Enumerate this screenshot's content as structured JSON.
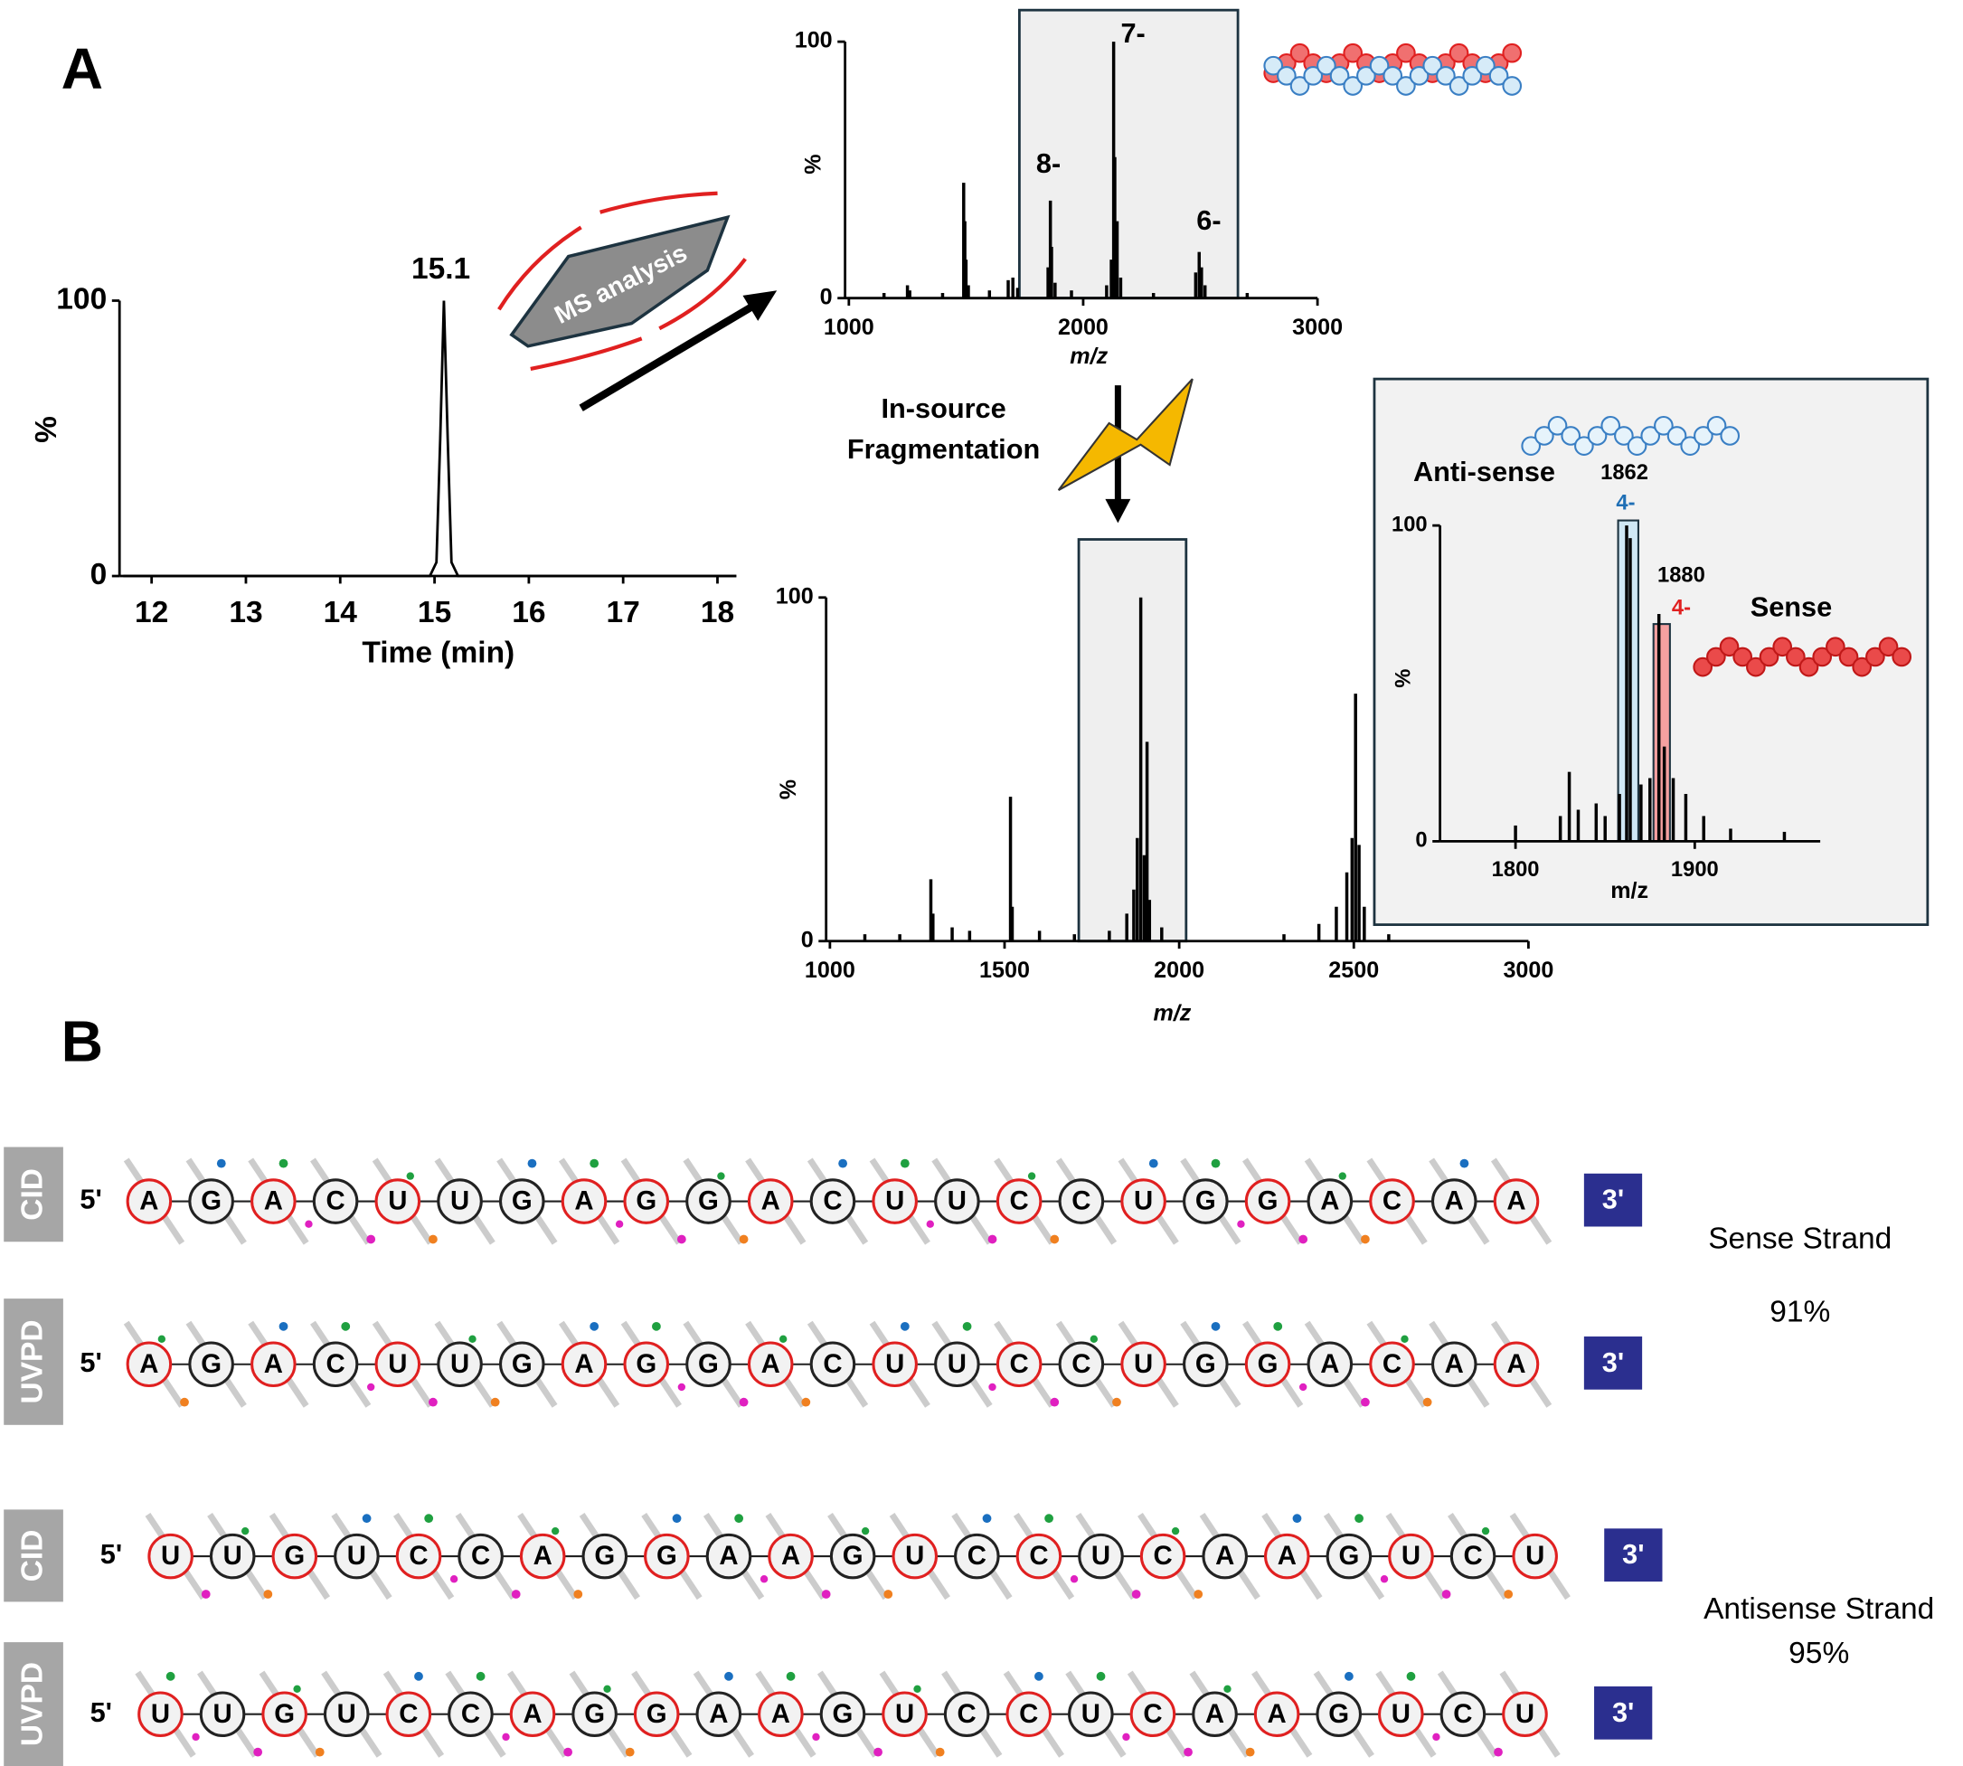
{
  "panel_labels": [
    "A",
    "B"
  ],
  "workflow": {
    "ms_analysis": "MS analysis",
    "fragmentation": [
      "In-source",
      "Fragmentation"
    ]
  },
  "chart_data": [
    {
      "type": "line",
      "color": "#000000",
      "x": [
        11.7,
        14.95,
        15.02,
        15.06,
        15.1,
        15.14,
        15.18,
        15.25,
        18.2
      ],
      "values": [
        0,
        0,
        5,
        50,
        100,
        50,
        5,
        0,
        0
      ],
      "xlim": [
        11.7,
        18.2
      ],
      "ylim": [
        0,
        100
      ],
      "xticks": [
        12,
        13,
        14,
        15,
        16,
        17,
        18
      ],
      "yticks": [
        0,
        100
      ],
      "x_label": "Time (min)",
      "y_label": "%",
      "annotations": [
        "15.1"
      ]
    },
    {
      "type": "spectrum",
      "color": "#000000",
      "x": [
        1150,
        1250,
        1260,
        1400,
        1490,
        1495,
        1500,
        1510,
        1600,
        1680,
        1700,
        1720,
        1850,
        1860,
        1865,
        1880,
        1950,
        2100,
        2120,
        2130,
        2135,
        2145,
        2160,
        2300,
        2480,
        2495,
        2505,
        2520,
        2700
      ],
      "values": [
        2,
        5,
        3,
        2,
        45,
        30,
        15,
        5,
        3,
        7,
        8,
        4,
        12,
        38,
        20,
        6,
        3,
        5,
        15,
        100,
        55,
        30,
        8,
        2,
        10,
        18,
        12,
        5,
        2
      ],
      "xlim": [
        1000,
        3000
      ],
      "ylim": [
        0,
        100
      ],
      "xticks": [
        1000,
        2000,
        3000
      ],
      "yticks": [
        0,
        100
      ],
      "x_label": "m/z",
      "y_label": "%",
      "annotations": [
        "8-",
        "7-",
        "6-"
      ]
    },
    {
      "type": "spectrum",
      "color": "#000000",
      "x": [
        1100,
        1200,
        1289,
        1295,
        1350,
        1400,
        1517,
        1522,
        1600,
        1700,
        1800,
        1850,
        1870,
        1880,
        1890,
        1900,
        1908,
        1915,
        1950,
        2300,
        2400,
        2450,
        2480,
        2495,
        2505,
        2515,
        2530,
        2600
      ],
      "values": [
        2,
        2,
        18,
        8,
        4,
        3,
        42,
        10,
        3,
        2,
        3,
        8,
        15,
        30,
        100,
        25,
        58,
        12,
        4,
        2,
        5,
        10,
        20,
        30,
        72,
        28,
        10,
        2
      ],
      "xlim": [
        1000,
        3000
      ],
      "ylim": [
        0,
        100
      ],
      "xticks": [
        1000,
        1500,
        2000,
        2500,
        3000
      ],
      "yticks": [
        0,
        100
      ],
      "x_label": "m/z",
      "y_label": "%"
    },
    {
      "type": "spectrum",
      "color": "#000000",
      "x": [
        1800,
        1825,
        1830,
        1835,
        1845,
        1850,
        1858,
        1862,
        1864,
        1870,
        1875,
        1880,
        1883,
        1888,
        1895,
        1905,
        1920,
        1950
      ],
      "values": [
        5,
        8,
        22,
        10,
        12,
        8,
        15,
        100,
        96,
        18,
        20,
        72,
        30,
        20,
        15,
        8,
        4,
        3
      ],
      "xlim": [
        1760,
        1970
      ],
      "ylim": [
        0,
        100
      ],
      "xticks": [
        1800,
        1900
      ],
      "yticks": [
        0,
        100
      ],
      "x_label": "m/z",
      "y_label": "%",
      "annotations": [
        "Anti-sense",
        "1862",
        "4-",
        "1880",
        "4-",
        "Sense"
      ]
    }
  ],
  "panel_B": {
    "five_prime": "5'",
    "three_prime": "3'",
    "strands": [
      {
        "name": "Sense Strand",
        "coverage": "91%",
        "sequence": [
          "A",
          "G",
          "A",
          "C",
          "U",
          "U",
          "G",
          "A",
          "G",
          "G",
          "A",
          "C",
          "U",
          "U",
          "C",
          "C",
          "U",
          "G",
          "G",
          "A",
          "C",
          "A",
          "A"
        ],
        "outline_colors": [
          "#e02020",
          "#222222",
          "#e02020",
          "#222222",
          "#e02020",
          "#222222",
          "#222222",
          "#e02020",
          "#e02020",
          "#222222",
          "#e02020",
          "#222222",
          "#e02020",
          "#222222",
          "#e02020",
          "#222222",
          "#e02020",
          "#222222",
          "#e02020",
          "#222222",
          "#e02020",
          "#222222",
          "#e02020"
        ],
        "methods": [
          "CID",
          "UVPD"
        ]
      },
      {
        "name": "Antisense Strand",
        "coverage": "95%",
        "sequence": [
          "U",
          "U",
          "G",
          "U",
          "C",
          "C",
          "A",
          "G",
          "G",
          "A",
          "A",
          "G",
          "U",
          "C",
          "C",
          "U",
          "C",
          "A",
          "A",
          "G",
          "U",
          "C",
          "U"
        ],
        "outline_colors": [
          "#e02020",
          "#222222",
          "#e02020",
          "#222222",
          "#e02020",
          "#222222",
          "#e02020",
          "#222222",
          "#e02020",
          "#222222",
          "#e02020",
          "#222222",
          "#e02020",
          "#222222",
          "#e02020",
          "#222222",
          "#e02020",
          "#222222",
          "#e02020",
          "#222222",
          "#e02020",
          "#222222",
          "#e02020"
        ],
        "methods": [
          "CID",
          "UVPD"
        ]
      }
    ]
  }
}
